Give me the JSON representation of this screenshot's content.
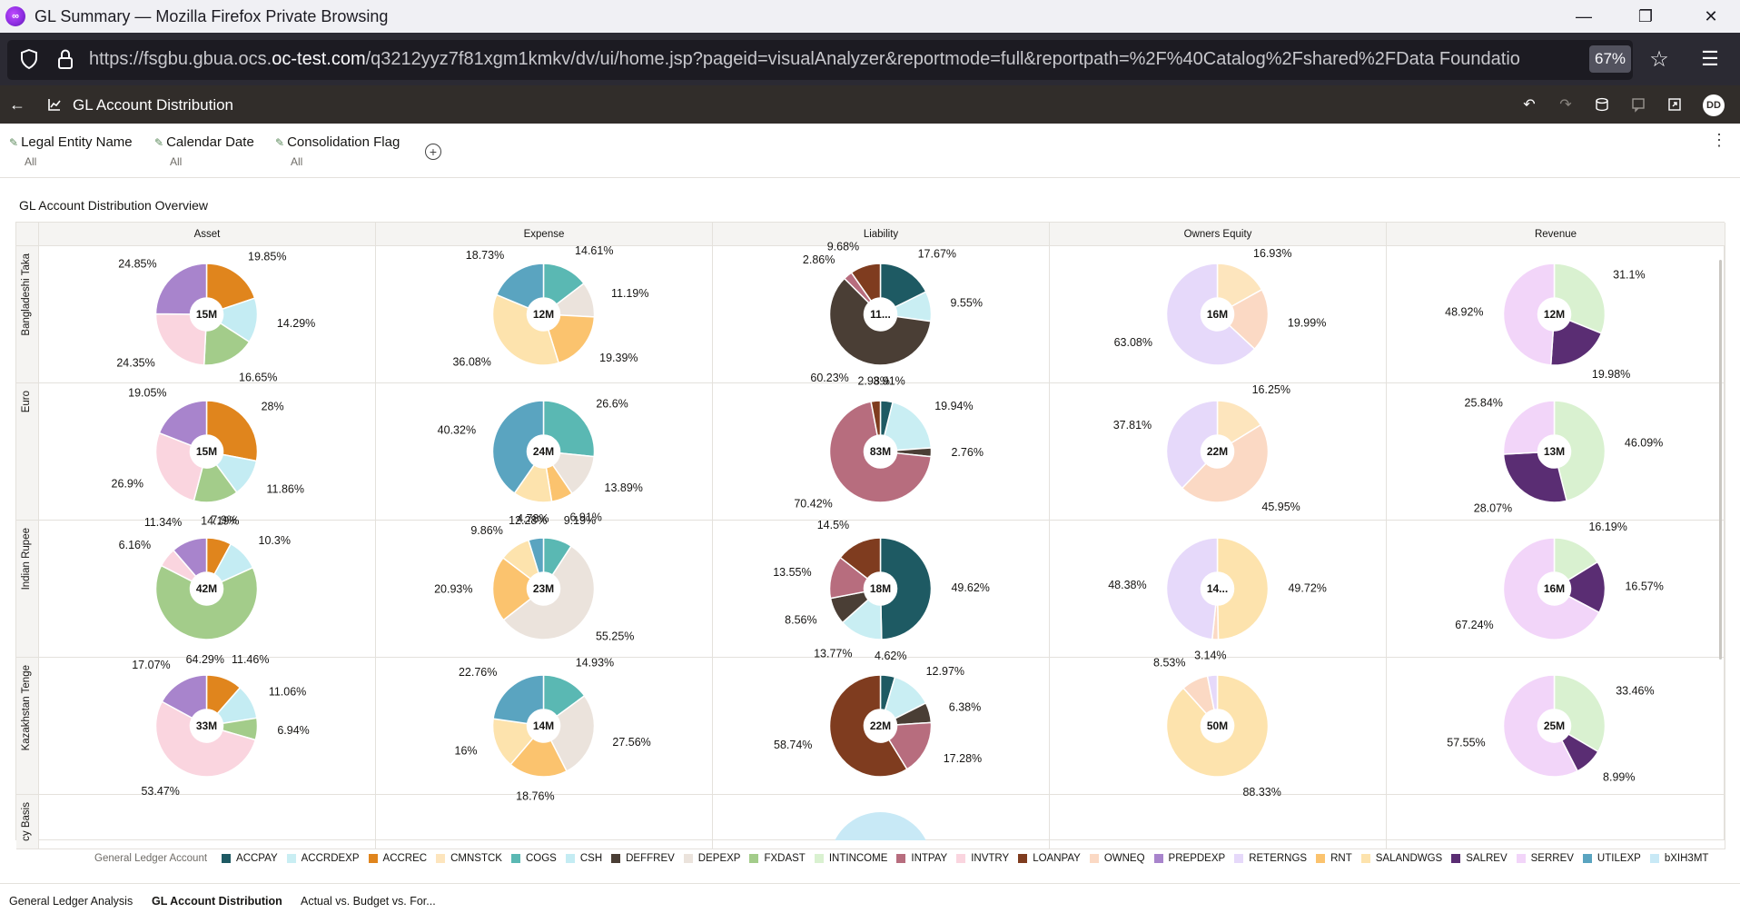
{
  "window": {
    "title": "GL Summary — Mozilla Firefox Private Browsing",
    "minimize_icon": "minimize-icon",
    "restore_icon": "restore-icon",
    "close_icon": "close-icon"
  },
  "browser": {
    "url_prefix": "https://fsgbu.gbua.ocs.",
    "url_host": "oc-test.com",
    "url_rest": "/q3212yyz7f81xgm1kmkv/dv/ui/home.jsp?pageid=visualAnalyzer&reportmode=full&reportpath=%2F%40Catalog%2Fshared%2FData Foundatio",
    "zoom": "67%"
  },
  "app": {
    "title": "GL Account Distribution",
    "user_initials": "DD"
  },
  "filters": [
    {
      "name": "Legal Entity Name",
      "value": "All"
    },
    {
      "name": "Calendar Date",
      "value": "All"
    },
    {
      "name": "Consolidation Flag",
      "value": "All"
    }
  ],
  "canvas": {
    "title": "GL Account Distribution Overview"
  },
  "colors": {
    "ACCPAY": "#1e5a63",
    "ACCRDEXP": "#c9eef3",
    "ACCREC": "#e0851d",
    "CMNSTCK": "#fde5bd",
    "COGS": "#5ab8b3",
    "CSH": "#c4ecf3",
    "DEFFREV": "#4a3e35",
    "DEPEXP": "#ebe3dc",
    "FXDAST": "#a3cc8a",
    "INTINCOME": "#d9f1d0",
    "INTPAY": "#b76d7e",
    "INVTRY": "#fad5df",
    "LOANPAY": "#7f3c1f",
    "OWNEQ": "#fbd9c4",
    "PREPDEXP": "#a884cc",
    "RETERNGS": "#e6d9fa",
    "RNT": "#fbc36e",
    "SALANDWGS": "#fde3ad",
    "SALREV": "#5a2d73",
    "SERREV": "#f2d5f9",
    "UTILEXP": "#5aa4c0",
    "bXIH3MT": "#c8e9f6"
  },
  "chart_data": {
    "type": "pie",
    "columns": [
      "Asset",
      "Expense",
      "Liability",
      "Owners Equity",
      "Revenue"
    ],
    "rows": [
      "Bangladeshi Taka",
      "Euro",
      "Indian Rupee",
      "Kazakhstan Tenge",
      "cy Basis"
    ],
    "legend_title": "General Ledger Account",
    "legend": [
      "ACCPAY",
      "ACCRDEXP",
      "ACCREC",
      "CMNSTCK",
      "COGS",
      "CSH",
      "DEFFREV",
      "DEPEXP",
      "FXDAST",
      "INTINCOME",
      "INTPAY",
      "INVTRY",
      "LOANPAY",
      "OWNEQ",
      "PREPDEXP",
      "RETERNGS",
      "RNT",
      "SALANDWGS",
      "SALREV",
      "SERREV",
      "UTILEXP",
      "bXIH3MT"
    ],
    "legend_position": "bottom",
    "cells": [
      [
        {
          "total": "15M",
          "slices": [
            [
              "ACCREC",
              19.85,
              "19.85%"
            ],
            [
              "CSH",
              14.29,
              "14.29%"
            ],
            [
              "FXDAST",
              16.65,
              "16.65%"
            ],
            [
              "INVTRY",
              24.35,
              "24.35%"
            ],
            [
              "PREPDEXP",
              24.85,
              "24.85%"
            ]
          ]
        },
        {
          "total": "12M",
          "slices": [
            [
              "COGS",
              14.61,
              "14.61%"
            ],
            [
              "DEPEXP",
              11.19,
              "11.19%"
            ],
            [
              "RNT",
              19.39,
              "19.39%"
            ],
            [
              "SALANDWGS",
              36.08,
              "36.08%"
            ],
            [
              "UTILEXP",
              18.73,
              "18.73%"
            ]
          ]
        },
        {
          "total": "11...",
          "slices": [
            [
              "ACCPAY",
              17.67,
              "17.67%"
            ],
            [
              "ACCRDEXP",
              9.55,
              "9.55%"
            ],
            [
              "DEFFREV",
              60.23,
              "60.23%"
            ],
            [
              "INTPAY",
              2.86,
              "2.86%"
            ],
            [
              "LOANPAY",
              9.68,
              "9.68%"
            ]
          ]
        },
        {
          "total": "16M",
          "slices": [
            [
              "CMNSTCK",
              16.93,
              "16.93%"
            ],
            [
              "OWNEQ",
              19.99,
              "19.99%"
            ],
            [
              "RETERNGS",
              63.08,
              "63.08%"
            ]
          ]
        },
        {
          "total": "12M",
          "slices": [
            [
              "INTINCOME",
              31.1,
              "31.1%"
            ],
            [
              "SALREV",
              19.98,
              "19.98%"
            ],
            [
              "SERREV",
              48.92,
              "48.92%"
            ]
          ]
        }
      ],
      [
        {
          "total": "15M",
          "slices": [
            [
              "ACCREC",
              28,
              "28%"
            ],
            [
              "CSH",
              11.86,
              "11.86%"
            ],
            [
              "FXDAST",
              14.19,
              "14.19%"
            ],
            [
              "INVTRY",
              26.9,
              "26.9%"
            ],
            [
              "PREPDEXP",
              19.05,
              "19.05%"
            ]
          ]
        },
        {
          "total": "24M",
          "slices": [
            [
              "COGS",
              26.6,
              "26.6%"
            ],
            [
              "DEPEXP",
              13.89,
              "13.89%"
            ],
            [
              "RNT",
              6.91,
              "6.91%"
            ],
            [
              "SALANDWGS",
              12.28,
              "12.28%"
            ],
            [
              "UTILEXP",
              40.32,
              "40.32%"
            ]
          ]
        },
        {
          "total": "83M",
          "slices": [
            [
              "ACCPAY",
              3.91,
              "3.91%"
            ],
            [
              "ACCRDEXP",
              19.94,
              "19.94%"
            ],
            [
              "DEFFREV",
              2.76,
              "2.76%"
            ],
            [
              "INTPAY",
              70.42,
              "70.42%"
            ],
            [
              "LOANPAY",
              2.98,
              "2.98%"
            ]
          ]
        },
        {
          "total": "22M",
          "slices": [
            [
              "CMNSTCK",
              16.25,
              "16.25%"
            ],
            [
              "OWNEQ",
              45.95,
              "45.95%"
            ],
            [
              "RETERNGS",
              37.81,
              "37.81%"
            ]
          ]
        },
        {
          "total": "13M",
          "slices": [
            [
              "INTINCOME",
              46.09,
              "46.09%"
            ],
            [
              "SALREV",
              28.07,
              "28.07%"
            ],
            [
              "SERREV",
              25.84,
              "25.84%"
            ]
          ]
        }
      ],
      [
        {
          "total": "42M",
          "slices": [
            [
              "ACCREC",
              7.9,
              "7.9%"
            ],
            [
              "CSH",
              10.3,
              "10.3%"
            ],
            [
              "FXDAST",
              64.29,
              "64.29%"
            ],
            [
              "INVTRY",
              6.16,
              "6.16%"
            ],
            [
              "PREPDEXP",
              11.34,
              "11.34%"
            ]
          ]
        },
        {
          "total": "23M",
          "slices": [
            [
              "COGS",
              9.19,
              "9.19%"
            ],
            [
              "DEPEXP",
              55.25,
              "55.25%"
            ],
            [
              "RNT",
              20.93,
              "20.93%"
            ],
            [
              "SALANDWGS",
              9.86,
              "9.86%"
            ],
            [
              "UTILEXP",
              4.78,
              "4.78%"
            ]
          ]
        },
        {
          "total": "18M",
          "slices": [
            [
              "ACCPAY",
              49.62,
              "49.62%"
            ],
            [
              "ACCRDEXP",
              13.77,
              "13.77%"
            ],
            [
              "DEFFREV",
              8.56,
              "8.56%"
            ],
            [
              "INTPAY",
              13.55,
              "13.55%"
            ],
            [
              "LOANPAY",
              14.5,
              "14.5%"
            ]
          ]
        },
        {
          "total": "14...",
          "slices": [
            [
              "SALANDWGS",
              49.72,
              "49.72%"
            ],
            [
              "OWNEQ",
              1.9,
              ""
            ],
            [
              "RETERNGS",
              48.38,
              "48.38%"
            ]
          ]
        },
        {
          "total": "16M",
          "slices": [
            [
              "INTINCOME",
              16.19,
              "16.19%"
            ],
            [
              "SALREV",
              16.57,
              "16.57%"
            ],
            [
              "SERREV",
              67.24,
              "67.24%"
            ]
          ]
        }
      ],
      [
        {
          "total": "33M",
          "slices": [
            [
              "ACCREC",
              11.46,
              "11.46%"
            ],
            [
              "CSH",
              11.06,
              "11.06%"
            ],
            [
              "FXDAST",
              6.94,
              "6.94%"
            ],
            [
              "INVTRY",
              53.47,
              "53.47%"
            ],
            [
              "PREPDEXP",
              17.07,
              "17.07%"
            ]
          ]
        },
        {
          "total": "14M",
          "slices": [
            [
              "COGS",
              14.93,
              "14.93%"
            ],
            [
              "DEPEXP",
              27.56,
              "27.56%"
            ],
            [
              "RNT",
              18.76,
              "18.76%"
            ],
            [
              "SALANDWGS",
              16,
              "16%"
            ],
            [
              "UTILEXP",
              22.76,
              "22.76%"
            ]
          ]
        },
        {
          "total": "22M",
          "slices": [
            [
              "ACCPAY",
              4.62,
              "4.62%"
            ],
            [
              "ACCRDEXP",
              12.97,
              "12.97%"
            ],
            [
              "DEFFREV",
              6.38,
              "6.38%"
            ],
            [
              "INTPAY",
              17.28,
              "17.28%"
            ],
            [
              "LOANPAY",
              58.74,
              "58.74%"
            ]
          ]
        },
        {
          "total": "50M",
          "slices": [
            [
              "SALANDWGS",
              88.33,
              "88.33%"
            ],
            [
              "OWNEQ",
              8.53,
              "8.53%"
            ],
            [
              "RETERNGS",
              3.14,
              "3.14%"
            ]
          ]
        },
        {
          "total": "25M",
          "slices": [
            [
              "INTINCOME",
              33.46,
              "33.46%"
            ],
            [
              "SALREV",
              8.99,
              "8.99%"
            ],
            [
              "SERREV",
              57.55,
              "57.55%"
            ]
          ]
        }
      ]
    ]
  },
  "tabs": [
    {
      "label": "General Ledger Analysis"
    },
    {
      "label": "GL Account Distribution"
    },
    {
      "label": "Actual vs. Budget vs. For..."
    }
  ]
}
